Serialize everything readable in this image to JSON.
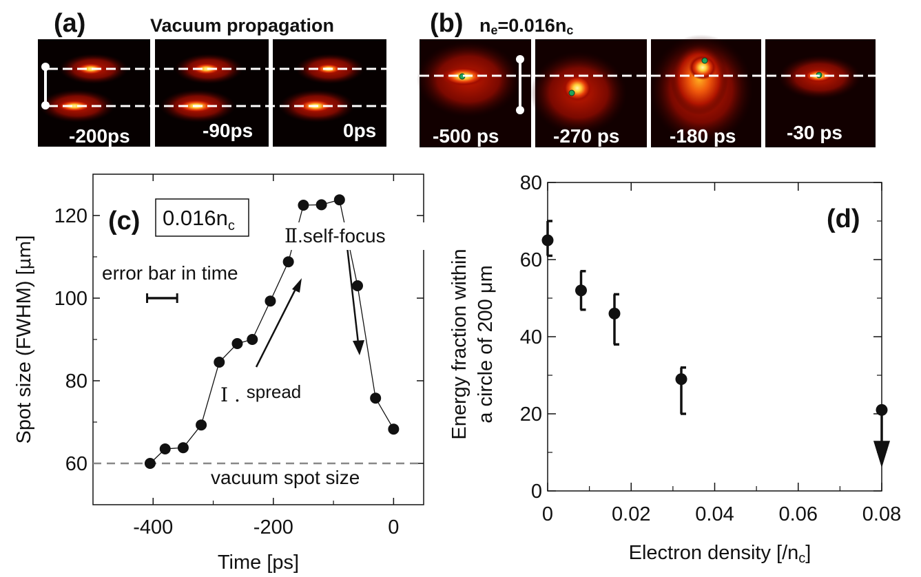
{
  "panel_a": {
    "letter": "(a)",
    "title": "Vacuum propagation",
    "frames": [
      {
        "label": "-200ps"
      },
      {
        "label": "-90ps"
      },
      {
        "label": "0ps"
      }
    ]
  },
  "panel_b": {
    "letter": "(b)",
    "title_ne": "n",
    "title_ne_sub": "e",
    "title_eq": "=0.016n",
    "title_nc_sub": "c",
    "frames": [
      {
        "label": "-500 ps"
      },
      {
        "label": "-270 ps"
      },
      {
        "label": "-180 ps"
      },
      {
        "label": "-30 ps"
      }
    ]
  },
  "colors": {
    "data": "#111111",
    "image_bg": "#000000",
    "hot": "#ffd23c",
    "warm": "#d21e00",
    "marker": "#1fa55a",
    "dashed_ref": "#888888"
  },
  "chart_data": [
    {
      "type": "line",
      "panel": "(c)",
      "xlabel": "Time [ps]",
      "ylabel": "Spot size (FWHM)  [μm]",
      "ylabel_main": "Spot size (FWHM)  [",
      "ylabel_unit": "μm",
      "ylabel_close": "]",
      "xlim": [
        -500,
        50
      ],
      "ylim": [
        50,
        130
      ],
      "xticks": [
        -400,
        -200,
        0
      ],
      "yticks": [
        60,
        80,
        100,
        120
      ],
      "xtick_labels": [
        "-400",
        "-200",
        "0"
      ],
      "ytick_labels": [
        "60",
        "80",
        "100",
        "120"
      ],
      "x": [
        -405,
        -380,
        -350,
        -320,
        -290,
        -260,
        -235,
        -205,
        -175,
        -150,
        -120,
        -90,
        -60,
        -30,
        0
      ],
      "y": [
        60,
        63.5,
        63.8,
        69.3,
        84.5,
        89,
        90,
        99.3,
        108.8,
        122.5,
        122.6,
        123.8,
        103,
        75.8,
        68.3
      ],
      "density_box": "0.016n",
      "density_box_sub": "c",
      "vacuum_ref": 60,
      "annotations": {
        "error_bar": "error bar in time",
        "error_bar_range": [
          -410,
          -360
        ],
        "error_bar_y": 100,
        "spread_num": "Ⅰ . ",
        "spread": "spread",
        "self_focus_num": "Ⅱ",
        "self_focus": ".self-focus",
        "vacuum": "vacuum spot size"
      }
    },
    {
      "type": "scatter",
      "panel": "(d)",
      "xlabel_main": "Electron density [/n",
      "xlabel_sub": "c",
      "xlabel_close": "]",
      "ylabel_line1": "Energy fraction within",
      "ylabel_line2": "a circle of 200 μm",
      "xlim": [
        0,
        0.08
      ],
      "ylim": [
        0,
        80
      ],
      "xticks": [
        0,
        0.02,
        0.04,
        0.06,
        0.08
      ],
      "yticks": [
        0,
        20,
        40,
        60,
        80
      ],
      "xtick_labels": [
        "0",
        "0.02",
        "0.04",
        "0.06",
        "0.08"
      ],
      "ytick_labels": [
        "0",
        "20",
        "40",
        "60",
        "80"
      ],
      "x": [
        0,
        0.008,
        0.016,
        0.032,
        0.08
      ],
      "y": [
        65,
        52,
        46,
        29,
        21
      ],
      "err_low": [
        61,
        47,
        38,
        20,
        null
      ],
      "err_high": [
        70,
        57,
        51,
        32,
        null
      ],
      "upper_limit": [
        false,
        false,
        false,
        false,
        true
      ]
    }
  ]
}
